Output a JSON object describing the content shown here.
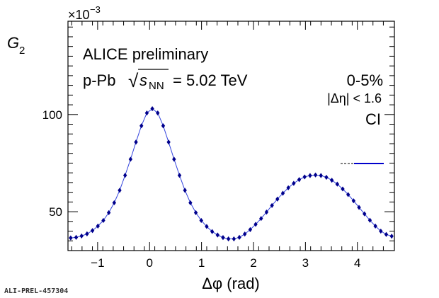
{
  "chart_data": {
    "type": "scatter",
    "exponent_label": "×10",
    "exponent_power": "−3",
    "ylabel_main": "G",
    "ylabel_sub": "2",
    "xlabel": "Δφ (rad)",
    "xlim": [
      -1.5708,
      4.7124
    ],
    "ylim": [
      30,
      148
    ],
    "x_ticks": [
      -1,
      0,
      1,
      2,
      3,
      4
    ],
    "x_tick_labels": [
      "−1",
      "0",
      "1",
      "2",
      "3",
      "4"
    ],
    "y_ticks": [
      50,
      100
    ],
    "y_tick_labels": [
      "50",
      "100"
    ],
    "annotations": {
      "experiment": "ALICE preliminary",
      "system_prefix": "p-Pb",
      "sqrt_symbol": "√",
      "sqrt_var": "s",
      "sqrt_sub": "NN",
      "energy": "= 5.02 TeV",
      "centrality": "0-5%",
      "eta_cut": "|Δη| < 1.6",
      "charge": "CI"
    },
    "watermark": "ALI-PREL-457304",
    "series": [
      {
        "color": "#00008b",
        "x": [
          -1.5184,
          -1.4137,
          -1.309,
          -1.2043,
          -1.0996,
          -0.9948,
          -0.8901,
          -0.7854,
          -0.6807,
          -0.576,
          -0.4712,
          -0.3665,
          -0.2618,
          -0.1571,
          -0.0524,
          0.0524,
          0.1571,
          0.2618,
          0.3665,
          0.4712,
          0.576,
          0.6807,
          0.7854,
          0.8901,
          0.9948,
          1.0996,
          1.2043,
          1.309,
          1.4137,
          1.5184,
          1.6232,
          1.7279,
          1.8326,
          1.9373,
          2.042,
          2.1468,
          2.2515,
          2.3562,
          2.4609,
          2.5656,
          2.6704,
          2.7751,
          2.8798,
          2.9845,
          3.0892,
          3.194,
          3.2987,
          3.4034,
          3.5081,
          3.6128,
          3.7176,
          3.8223,
          3.927,
          4.0317,
          4.1364,
          4.2412,
          4.3459,
          4.4506,
          4.5553,
          4.66
        ],
        "y": [
          36.5,
          36.8,
          37.5,
          38.6,
          40.3,
          42.6,
          45.5,
          49.5,
          54.6,
          61.0,
          68.7,
          77.0,
          85.8,
          94.2,
          100.8,
          103.0,
          100.8,
          94.2,
          85.8,
          77.0,
          68.7,
          61.0,
          54.6,
          49.5,
          45.5,
          42.4,
          39.8,
          38.0,
          36.7,
          36.0,
          36.0,
          36.8,
          38.5,
          40.8,
          43.5,
          46.5,
          49.8,
          53.2,
          56.5,
          59.5,
          62.3,
          64.6,
          66.5,
          67.9,
          68.6,
          68.9,
          68.6,
          67.7,
          66.2,
          64.2,
          61.7,
          58.8,
          55.6,
          52.2,
          48.9,
          45.6,
          42.6,
          40.0,
          38.3,
          37.4
        ]
      }
    ]
  }
}
